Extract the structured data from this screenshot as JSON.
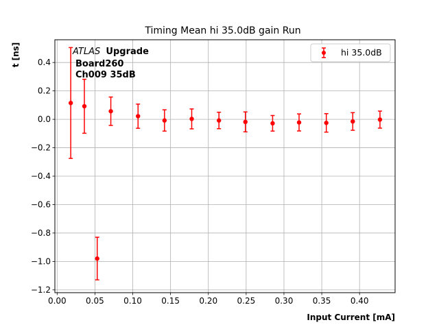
{
  "chart_data": {
    "type": "scatter",
    "title": "Timing Mean hi 35.0dB gain Run",
    "xlabel": "Input Current [mA]",
    "ylabel": "t [ns]",
    "xlim": [
      -0.003,
      0.447
    ],
    "ylim": [
      -1.22,
      0.56
    ],
    "xticks": [
      0.0,
      0.05,
      0.1,
      0.15,
      0.2,
      0.25,
      0.3,
      0.35,
      0.4
    ],
    "xtick_labels": [
      "0.00",
      "0.05",
      "0.10",
      "0.15",
      "0.20",
      "0.25",
      "0.30",
      "0.35",
      "0.40"
    ],
    "yticks": [
      0.4,
      0.2,
      0.0,
      -0.2,
      -0.4,
      -0.6,
      -0.8,
      -1.0,
      -1.2
    ],
    "ytick_labels": [
      "0.4",
      "0.2",
      "0.0",
      "−0.2",
      "−0.4",
      "−0.6",
      "−0.8",
      "−1.0",
      "−1.2"
    ],
    "grid": true,
    "legend_position": "top-right",
    "series": [
      {
        "name": "hi 35.0dB",
        "color": "#ff0000",
        "x": [
          0.018,
          0.036,
          0.053,
          0.071,
          0.107,
          0.142,
          0.178,
          0.214,
          0.249,
          0.285,
          0.32,
          0.356,
          0.391,
          0.427
        ],
        "y": [
          0.115,
          0.092,
          -0.98,
          0.057,
          0.022,
          -0.008,
          0.003,
          -0.008,
          -0.018,
          -0.028,
          -0.022,
          -0.025,
          -0.015,
          -0.002
        ],
        "err": [
          0.39,
          0.19,
          0.15,
          0.1,
          0.085,
          0.075,
          0.07,
          0.058,
          0.07,
          0.055,
          0.06,
          0.065,
          0.062,
          0.06
        ]
      }
    ],
    "annotation": {
      "italic": "ATLAS",
      "bold": "Upgrade",
      "line2": "Board260",
      "line3": "Ch009 35dB"
    }
  }
}
